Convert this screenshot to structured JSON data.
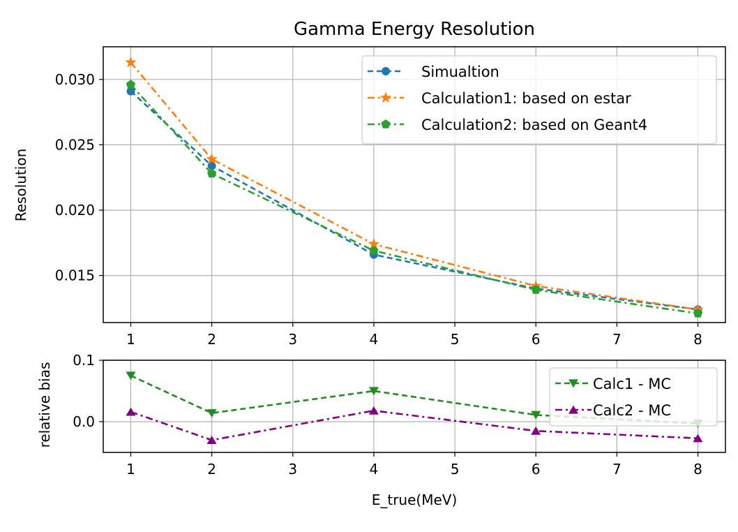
{
  "chart_data": [
    {
      "type": "line",
      "title": "Gamma Energy Resolution",
      "xlabel": "",
      "ylabel": "Resolution",
      "xlim": [
        0.66,
        8.34
      ],
      "ylim": [
        0.0114,
        0.0325
      ],
      "xticks": [
        1,
        2,
        3,
        4,
        5,
        6,
        7,
        8
      ],
      "xtick_labels": [
        "1",
        "2",
        "3",
        "4",
        "5",
        "6",
        "7",
        "8"
      ],
      "yticks": [
        0.015,
        0.02,
        0.025,
        0.03
      ],
      "ytick_labels": [
        "0.015",
        "0.020",
        "0.025",
        "0.030"
      ],
      "grid": true,
      "legend_position": "upper right",
      "x": [
        1,
        2,
        4,
        6,
        8
      ],
      "series": [
        {
          "name": "Simualtion",
          "values": [
            0.0291,
            0.0234,
            0.0166,
            0.014,
            0.0124
          ],
          "color": "#1f77b4",
          "marker": "circle",
          "line_style": "dashed"
        },
        {
          "name": "Calculation1: based on estar",
          "values": [
            0.0313,
            0.0239,
            0.0174,
            0.0142,
            0.0124
          ],
          "color": "#ff7f0e",
          "marker": "star",
          "line_style": "dashdot"
        },
        {
          "name": "Calculation2: based on Geant4",
          "values": [
            0.0296,
            0.0228,
            0.0169,
            0.0139,
            0.0121
          ],
          "color": "#2ca02c",
          "marker": "pentagon",
          "line_style": "dashdot"
        }
      ]
    },
    {
      "type": "line",
      "title": "",
      "xlabel": "E_true(MeV)",
      "ylabel": "relative bias",
      "xlim": [
        0.66,
        8.34
      ],
      "ylim": [
        -0.05,
        0.1
      ],
      "xticks": [
        1,
        2,
        3,
        4,
        5,
        6,
        7,
        8
      ],
      "xtick_labels": [
        "1",
        "2",
        "3",
        "4",
        "5",
        "6",
        "7",
        "8"
      ],
      "yticks": [
        0.0,
        0.1
      ],
      "ytick_labels": [
        "0.0",
        "0.1"
      ],
      "grid": true,
      "legend_position": "upper right",
      "x": [
        1,
        2,
        4,
        6,
        8
      ],
      "series": [
        {
          "name": "Calc1 - MC",
          "values": [
            0.075,
            0.014,
            0.05,
            0.011,
            -0.003
          ],
          "color": "#228b22",
          "marker": "triangle-down",
          "line_style": "dashed"
        },
        {
          "name": "Calc2 - MC",
          "values": [
            0.016,
            -0.03,
            0.018,
            -0.015,
            -0.027
          ],
          "color": "#800080",
          "marker": "triangle-up",
          "line_style": "dashdot"
        }
      ]
    }
  ]
}
